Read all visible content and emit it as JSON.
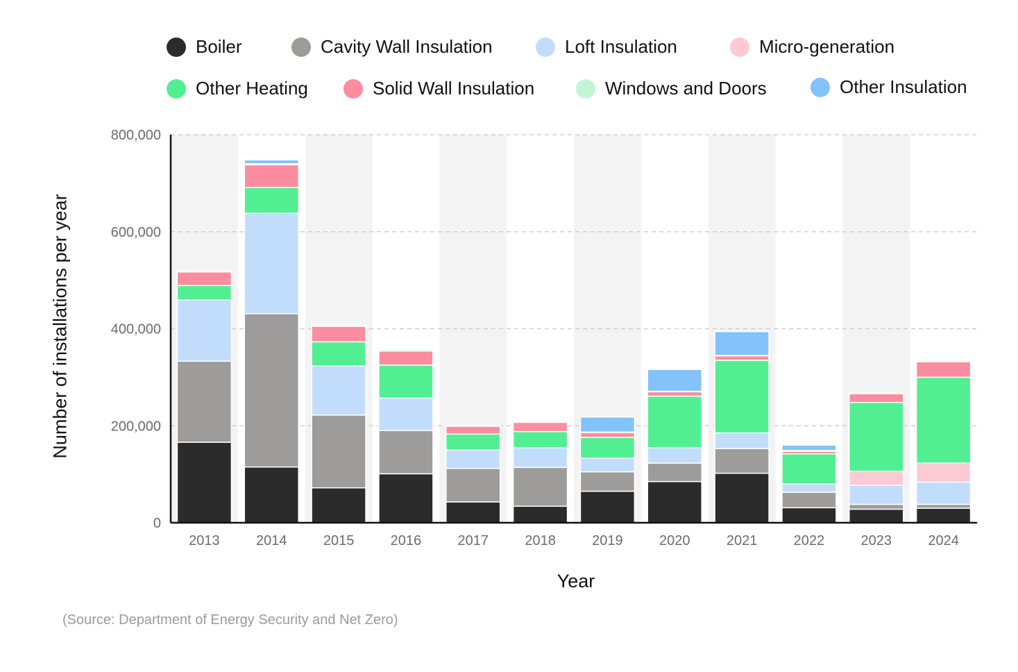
{
  "chart_data": {
    "type": "bar",
    "stacked": true,
    "title": "",
    "xlabel": "Year",
    "ylabel": "Number of installations per year",
    "ylim": [
      0,
      800000
    ],
    "yticks": [
      0,
      200000,
      400000,
      600000,
      800000
    ],
    "ytick_labels": [
      "0",
      "200,000",
      "400,000",
      "600,000",
      "800,000"
    ],
    "grid": "horizontal dashed",
    "legend_position": "top",
    "categories": [
      "2013",
      "2014",
      "2015",
      "2016",
      "2017",
      "2018",
      "2019",
      "2020",
      "2021",
      "2022",
      "2023",
      "2024"
    ],
    "series": [
      {
        "name": "Boiler",
        "color": "#2b2b2b",
        "values": [
          166000,
          115000,
          72000,
          101000,
          43000,
          34000,
          65000,
          85000,
          102000,
          31000,
          28000,
          30000
        ]
      },
      {
        "name": "Cavity Wall Insulation",
        "color": "#9e9b9b",
        "values": [
          167000,
          316000,
          150000,
          89000,
          69000,
          80000,
          40000,
          38000,
          51000,
          32000,
          10000,
          8000
        ]
      },
      {
        "name": "Loft Insulation",
        "color": "#c2ddfb",
        "values": [
          126000,
          207000,
          101000,
          67000,
          38000,
          41000,
          28000,
          32000,
          32000,
          17000,
          39000,
          46000
        ]
      },
      {
        "name": "Micro-generation",
        "color": "#fccad3",
        "values": [
          0,
          0,
          0,
          0,
          0,
          0,
          0,
          0,
          0,
          0,
          29000,
          39000
        ]
      },
      {
        "name": "Other Heating",
        "color": "#52ef92",
        "values": [
          30000,
          53000,
          50000,
          68000,
          33000,
          33000,
          43000,
          106000,
          150000,
          62000,
          142000,
          177000
        ]
      },
      {
        "name": "Solid Wall Insulation",
        "color": "#fc8c9f",
        "values": [
          28000,
          47000,
          32000,
          29000,
          16000,
          19000,
          10000,
          9000,
          9000,
          5000,
          18000,
          32000
        ]
      },
      {
        "name": "Windows and Doors",
        "color": "#c2f5d6",
        "values": [
          3000,
          2000,
          3000,
          3000,
          2000,
          2000,
          1000,
          1000,
          1000,
          2000,
          3000,
          3000
        ]
      },
      {
        "name": "Other Insulation",
        "color": "#83c2fa",
        "values": [
          0,
          8000,
          0,
          0,
          0,
          0,
          31000,
          45000,
          49000,
          11000,
          0,
          0
        ]
      }
    ],
    "source": "(Source: Department of Energy Security and Net Zero)"
  }
}
